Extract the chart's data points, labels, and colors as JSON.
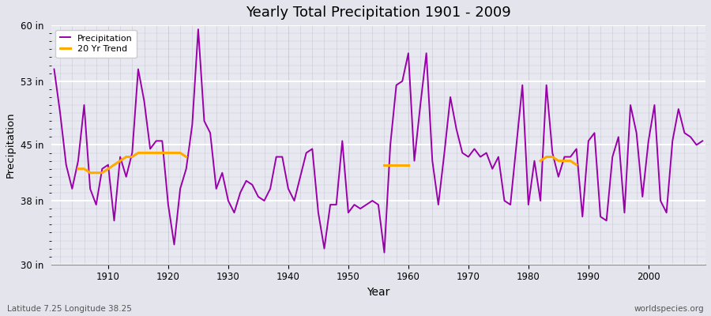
{
  "title": "Yearly Total Precipitation 1901 - 2009",
  "xlabel": "Year",
  "ylabel": "Precipitation",
  "years": [
    1901,
    1902,
    1903,
    1904,
    1905,
    1906,
    1907,
    1908,
    1909,
    1910,
    1911,
    1912,
    1913,
    1914,
    1915,
    1916,
    1917,
    1918,
    1919,
    1920,
    1921,
    1922,
    1923,
    1924,
    1925,
    1926,
    1927,
    1928,
    1929,
    1930,
    1931,
    1932,
    1933,
    1934,
    1935,
    1936,
    1937,
    1938,
    1939,
    1940,
    1941,
    1942,
    1943,
    1944,
    1945,
    1946,
    1947,
    1948,
    1949,
    1950,
    1951,
    1952,
    1953,
    1954,
    1955,
    1956,
    1957,
    1958,
    1959,
    1960,
    1961,
    1962,
    1963,
    1964,
    1965,
    1966,
    1967,
    1968,
    1969,
    1970,
    1971,
    1972,
    1973,
    1974,
    1975,
    1976,
    1977,
    1978,
    1979,
    1980,
    1981,
    1982,
    1983,
    1984,
    1985,
    1986,
    1987,
    1988,
    1989,
    1990,
    1991,
    1992,
    1993,
    1994,
    1995,
    1996,
    1997,
    1998,
    1999,
    2000,
    2001,
    2002,
    2003,
    2004,
    2005,
    2006,
    2007,
    2008,
    2009
  ],
  "precip": [
    54.5,
    49.0,
    42.5,
    39.5,
    43.0,
    50.0,
    39.5,
    37.5,
    42.0,
    42.5,
    35.5,
    43.5,
    41.0,
    44.0,
    54.5,
    50.5,
    44.5,
    45.5,
    45.5,
    37.5,
    32.5,
    39.5,
    42.0,
    47.5,
    59.5,
    48.0,
    46.5,
    39.5,
    41.5,
    38.0,
    36.5,
    39.0,
    40.5,
    40.0,
    38.5,
    38.0,
    39.5,
    43.5,
    43.5,
    39.5,
    38.0,
    41.0,
    44.0,
    44.5,
    36.5,
    32.0,
    37.5,
    37.5,
    45.5,
    36.5,
    37.5,
    37.0,
    37.5,
    38.0,
    37.5,
    31.5,
    45.0,
    52.5,
    53.0,
    56.5,
    43.0,
    50.0,
    56.5,
    43.0,
    37.5,
    44.0,
    51.0,
    47.0,
    44.0,
    43.5,
    44.5,
    43.5,
    44.0,
    42.0,
    43.5,
    38.0,
    37.5,
    45.0,
    52.5,
    37.5,
    43.0,
    38.0,
    52.5,
    44.0,
    41.0,
    43.5,
    43.5,
    44.5,
    36.0,
    45.5,
    46.5,
    36.0,
    35.5,
    43.5,
    46.0,
    36.5,
    50.0,
    46.5,
    38.5,
    45.5,
    50.0,
    38.0,
    36.5,
    45.5,
    49.5,
    46.5,
    46.0,
    45.0,
    45.5
  ],
  "trend_seg1_years": [
    1905,
    1906,
    1907,
    1908,
    1909,
    1910,
    1911,
    1912,
    1913,
    1914,
    1915,
    1916,
    1917,
    1918,
    1919,
    1920,
    1921,
    1922,
    1923
  ],
  "trend_seg1_vals": [
    42.0,
    42.0,
    41.5,
    41.5,
    41.5,
    42.0,
    42.5,
    43.0,
    43.5,
    43.5,
    44.0,
    44.0,
    44.0,
    44.0,
    44.0,
    44.0,
    44.0,
    44.0,
    43.5
  ],
  "trend_seg2_years": [
    1956,
    1957,
    1958,
    1959,
    1960
  ],
  "trend_seg2_vals": [
    42.5,
    42.5,
    42.5,
    42.5,
    42.5
  ],
  "trend_seg3_years": [
    1982,
    1983,
    1984,
    1985,
    1986,
    1987,
    1988
  ],
  "trend_seg3_vals": [
    43.0,
    43.5,
    43.5,
    43.0,
    43.0,
    43.0,
    42.5
  ],
  "precip_color": "#9900aa",
  "trend_color": "#ffaa00",
  "bg_color": "#e4e4ec",
  "plot_bg_color": "#e8e8f0",
  "ylim": [
    30,
    60
  ],
  "yticks": [
    30,
    38,
    45,
    53,
    60
  ],
  "ytick_labels": [
    "30 in",
    "38 in",
    "45 in",
    "53 in",
    "60 in"
  ],
  "xticks": [
    1910,
    1920,
    1930,
    1940,
    1950,
    1960,
    1970,
    1980,
    1990,
    2000
  ],
  "line_width": 1.4,
  "footnote_left": "Latitude 7.25 Longitude 38.25",
  "footnote_right": "worldspecies.org"
}
